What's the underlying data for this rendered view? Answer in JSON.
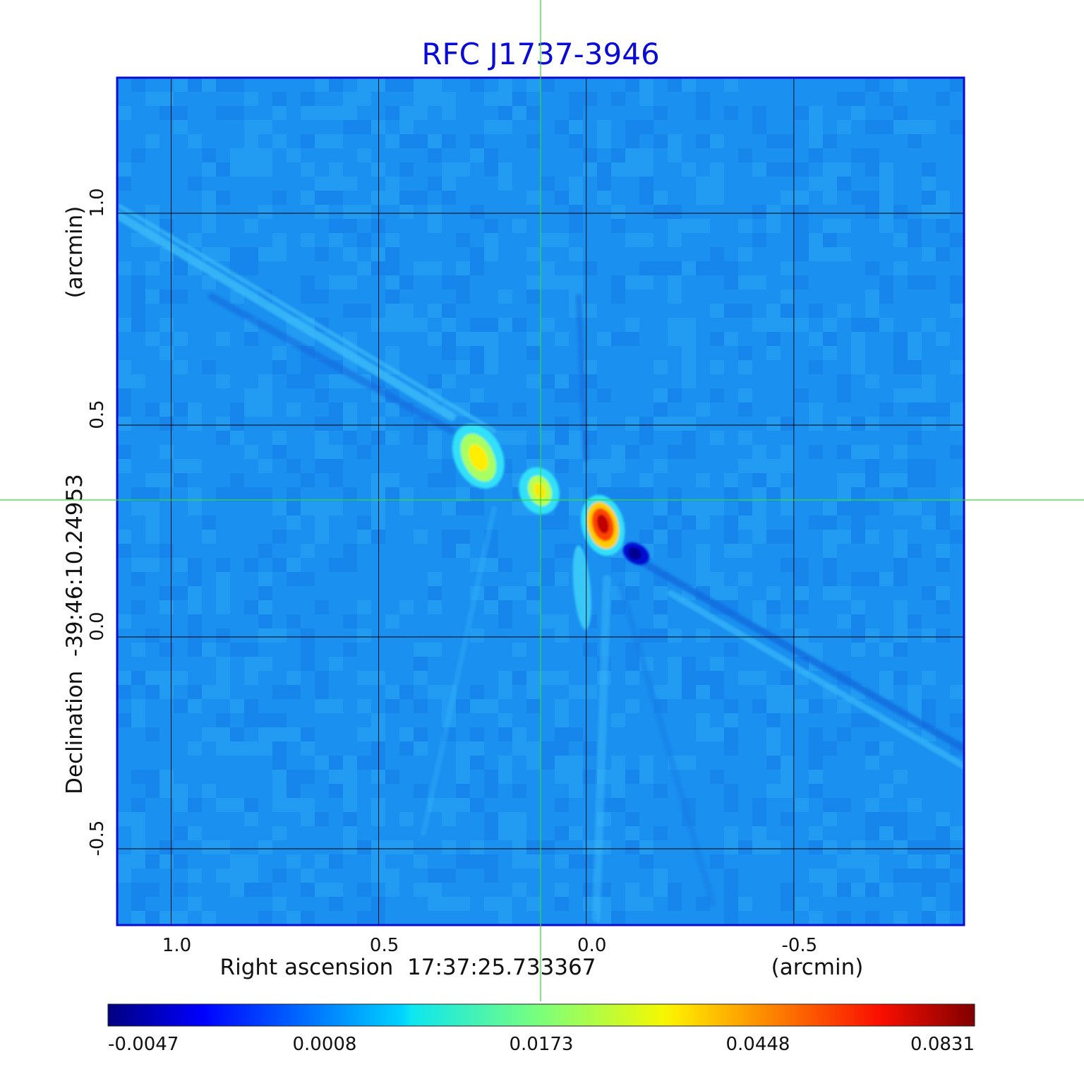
{
  "chart_data": {
    "type": "heatmap",
    "title": "RFC J1737-3946",
    "xlabel": "Right ascension  17:37:25.733367",
    "xlabel_unit": "(arcmin)",
    "ylabel": "Declination  -39:46:10.24953",
    "ylabel_unit": "(arcmin)",
    "x_ticks": [
      1.0,
      0.5,
      0.0,
      -0.5
    ],
    "x_tick_labels": [
      "1.0",
      "0.5",
      "0.0",
      "-0.5"
    ],
    "y_ticks": [
      1.0,
      0.5,
      0.0,
      -0.5
    ],
    "y_tick_labels": [
      "1.0",
      "0.5",
      "0.0",
      "-0.5"
    ],
    "xlim": [
      1.13,
      -0.91
    ],
    "ylim": [
      -0.68,
      1.32
    ],
    "grid": true,
    "crosshair": {
      "x": 0.11,
      "y": 0.33
    },
    "colorbar": {
      "colormap": "jet",
      "tick_values": [
        -0.0047,
        0.0008,
        0.0173,
        0.0448,
        0.0831
      ],
      "tick_labels": [
        "-0.0047",
        "0.0008",
        "0.0173",
        "0.0448",
        "0.0831"
      ]
    },
    "sources": [
      {
        "x": 0.26,
        "y": 0.43,
        "peak": 0.04
      },
      {
        "x": 0.11,
        "y": 0.35,
        "peak": 0.035
      },
      {
        "x": -0.04,
        "y": 0.26,
        "peak": 0.0831
      },
      {
        "x": -0.12,
        "y": 0.2,
        "peak": -0.0047
      }
    ]
  }
}
